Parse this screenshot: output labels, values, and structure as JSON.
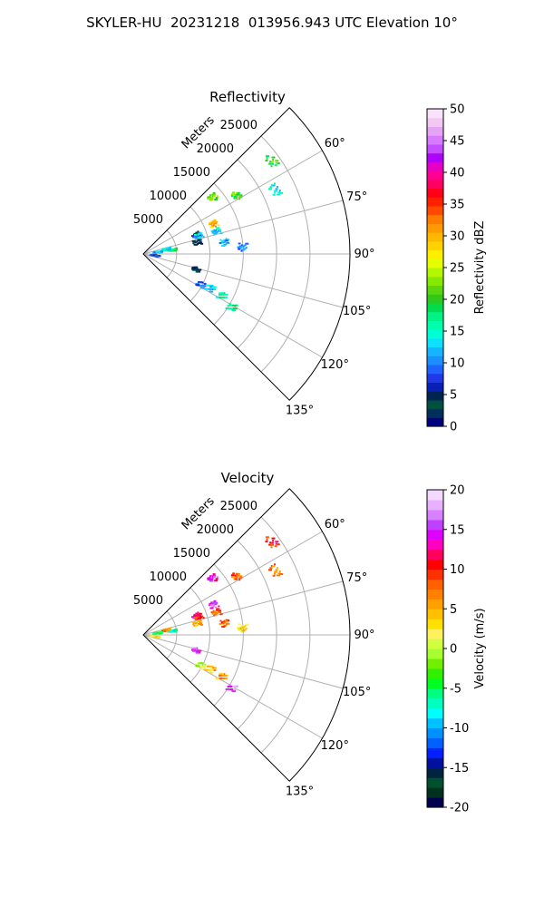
{
  "figure": {
    "title": "SKYLER-HU  20231218  013956.943 UTC Elevation 10°"
  },
  "chart_data": [
    {
      "type": "ppi_sector",
      "title": "Reflectivity",
      "range_label": "Meters",
      "range_ticks": [
        5000,
        10000,
        15000,
        20000,
        25000
      ],
      "range_max": 31000,
      "azimuth_ticks": [
        "60°",
        "75°",
        "90°",
        "105°",
        "120°",
        "135°"
      ],
      "azimuth_range": [
        45,
        135
      ],
      "colorbar": {
        "label": "Reflectivity dBZ",
        "min": 0,
        "max": 50,
        "ticks": [
          0,
          5,
          10,
          15,
          20,
          25,
          30,
          35,
          40,
          45,
          50
        ],
        "colormap": "pyart_NWSRef"
      },
      "echoes": [
        {
          "azimuth": 51,
          "range_m": 13500,
          "value": 22
        },
        {
          "azimuth": 58,
          "range_m": 16500,
          "value": 21
        },
        {
          "azimuth": 54,
          "range_m": 23800,
          "value": 20
        },
        {
          "azimuth": 64,
          "range_m": 22000,
          "value": 14
        },
        {
          "azimuth": 67,
          "range_m": 11500,
          "value": 30
        },
        {
          "azimuth": 73,
          "range_m": 11500,
          "value": 13
        },
        {
          "azimuth": 70,
          "range_m": 8500,
          "value": 4
        },
        {
          "azimuth": 72,
          "range_m": 8800,
          "value": 12
        },
        {
          "azimuth": 78,
          "range_m": 8300,
          "value": 3
        },
        {
          "azimuth": 82,
          "range_m": 12300,
          "value": 12
        },
        {
          "azimuth": 86,
          "range_m": 15000,
          "value": 10
        },
        {
          "azimuth": 82,
          "range_m": 4500,
          "value": 18
        },
        {
          "azimuth": 78,
          "range_m": 3500,
          "value": 14
        },
        {
          "azimuth": 83,
          "range_m": 2200,
          "value": 12
        },
        {
          "azimuth": 98,
          "range_m": 1800,
          "value": 7
        },
        {
          "azimuth": 106,
          "range_m": 8300,
          "value": 3
        },
        {
          "azimuth": 118,
          "range_m": 9800,
          "value": 9
        },
        {
          "azimuth": 117,
          "range_m": 11300,
          "value": 13
        },
        {
          "azimuth": 118,
          "range_m": 13500,
          "value": 16
        },
        {
          "azimuth": 121,
          "range_m": 15500,
          "value": 17
        }
      ]
    },
    {
      "type": "ppi_sector",
      "title": "Velocity",
      "range_label": "Meters",
      "range_ticks": [
        5000,
        10000,
        15000,
        20000,
        25000
      ],
      "range_max": 31000,
      "azimuth_ticks": [
        "60°",
        "75°",
        "90°",
        "105°",
        "120°",
        "135°"
      ],
      "azimuth_range": [
        45,
        135
      ],
      "colorbar": {
        "label": "Velocity (m/s)",
        "min": -20,
        "max": 20,
        "ticks": [
          -20,
          -15,
          -10,
          -5,
          0,
          5,
          10,
          15,
          20
        ],
        "colormap": "pyart_BuDRd18"
      },
      "echoes": [
        {
          "azimuth": 51,
          "range_m": 13500,
          "value": 14
        },
        {
          "azimuth": 58,
          "range_m": 16500,
          "value": 8
        },
        {
          "azimuth": 54,
          "range_m": 23800,
          "value": 10
        },
        {
          "azimuth": 64,
          "range_m": 22000,
          "value": 7
        },
        {
          "azimuth": 67,
          "range_m": 11500,
          "value": 15
        },
        {
          "azimuth": 73,
          "range_m": 11500,
          "value": 8
        },
        {
          "azimuth": 70,
          "range_m": 8500,
          "value": 13
        },
        {
          "azimuth": 72,
          "range_m": 8800,
          "value": 10
        },
        {
          "azimuth": 78,
          "range_m": 8300,
          "value": 5
        },
        {
          "azimuth": 82,
          "range_m": 12300,
          "value": 8
        },
        {
          "azimuth": 86,
          "range_m": 15000,
          "value": 3
        },
        {
          "azimuth": 82,
          "range_m": 4500,
          "value": -7
        },
        {
          "azimuth": 78,
          "range_m": 3500,
          "value": 7
        },
        {
          "azimuth": 83,
          "range_m": 2200,
          "value": -5
        },
        {
          "azimuth": 98,
          "range_m": 1800,
          "value": 2
        },
        {
          "azimuth": 106,
          "range_m": 8300,
          "value": 15
        },
        {
          "azimuth": 118,
          "range_m": 9800,
          "value": 0
        },
        {
          "azimuth": 117,
          "range_m": 11300,
          "value": 4
        },
        {
          "azimuth": 118,
          "range_m": 13500,
          "value": 6
        },
        {
          "azimuth": 121,
          "range_m": 15500,
          "value": 16
        }
      ]
    }
  ]
}
